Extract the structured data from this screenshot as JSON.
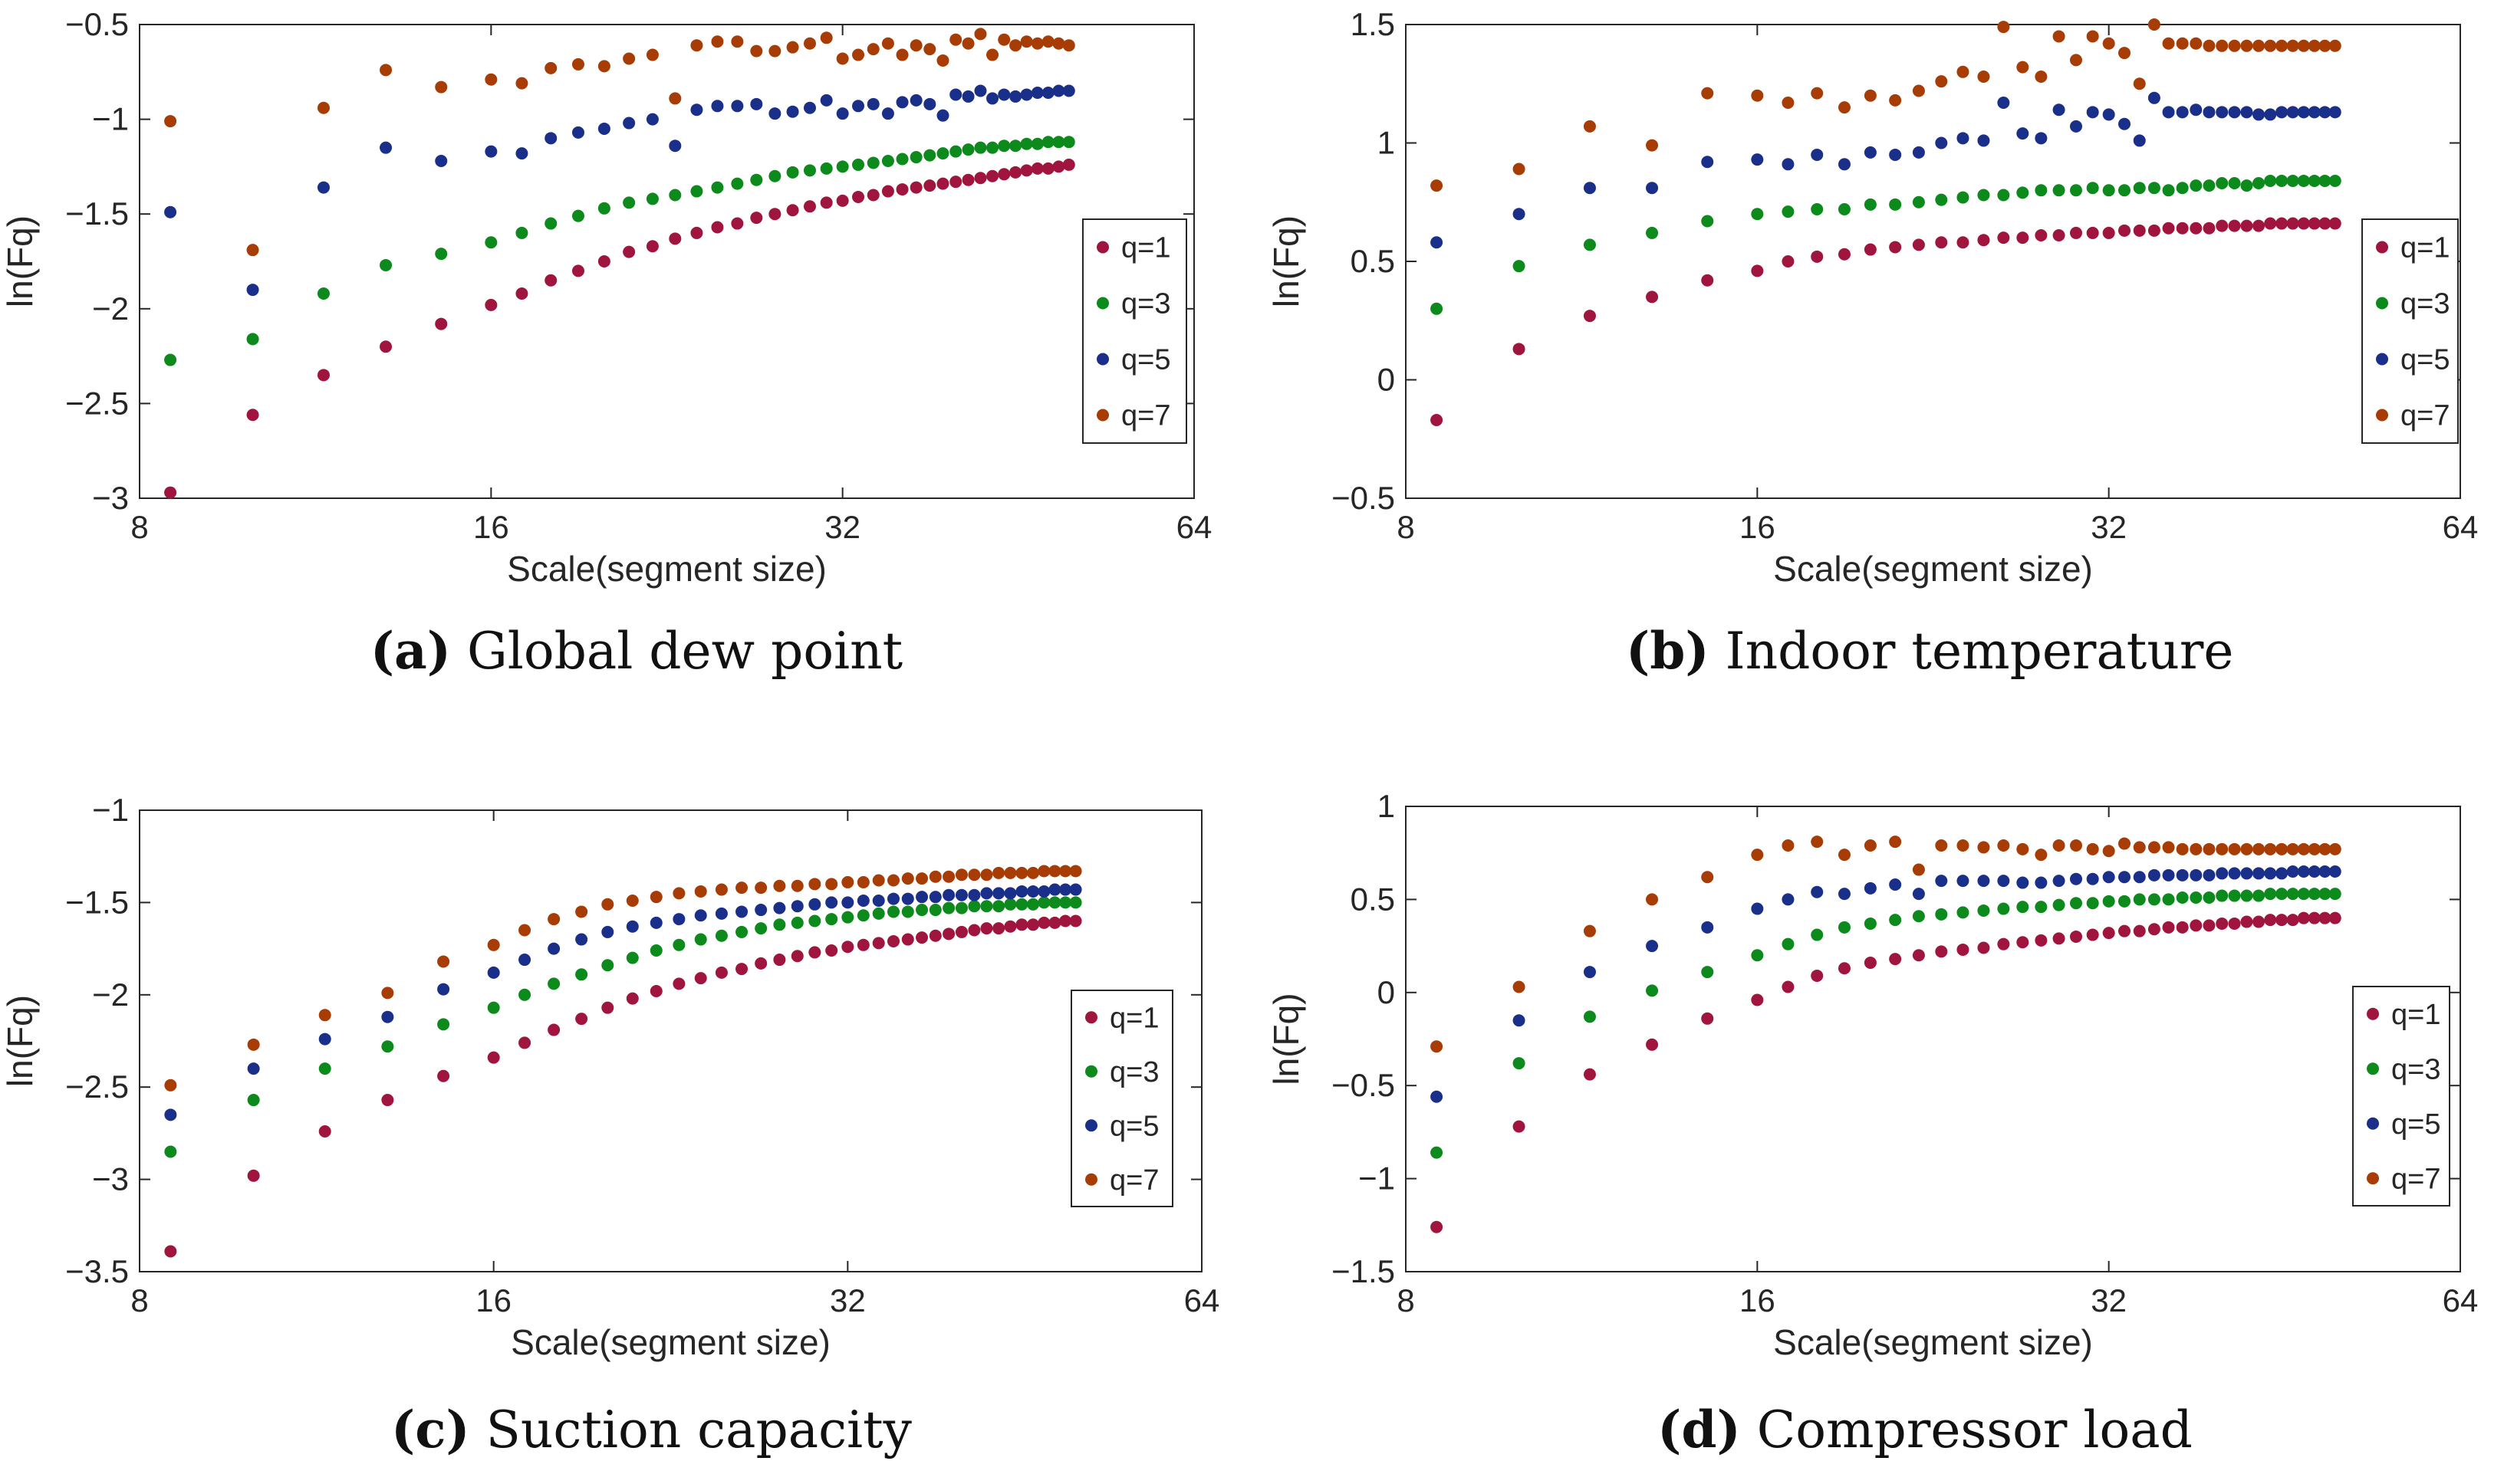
{
  "colors": {
    "q1": "#a0153e",
    "q3": "#0c8a1c",
    "q5": "#1a2f8a",
    "q7": "#a83c05",
    "axis": "#262626",
    "frame": "#262626"
  },
  "chart_data": [
    {
      "id": "a",
      "type": "scatter",
      "caption_letter": "(a)",
      "caption_text": "Global dew point",
      "xlabel": "Scale(segment size)",
      "ylabel": "ln(Fq)",
      "xscale": "log2",
      "xlim": [
        8,
        64
      ],
      "ylim": [
        -3,
        -0.5
      ],
      "xticks": [
        8,
        16,
        32,
        64
      ],
      "xticklabels": [
        "8",
        "16",
        "32",
        "64"
      ],
      "yticks": [
        -3,
        -2.5,
        -2,
        -1.5,
        -1,
        -0.5
      ],
      "yticklabels": [
        "−3",
        "−2.5",
        "−2",
        "−1.5",
        "−1",
        "−0.5"
      ],
      "legend_position": "right",
      "x": [
        8.5,
        10,
        11.5,
        13,
        14.5,
        16,
        17,
        18,
        19,
        20,
        21,
        22,
        23,
        24,
        25,
        26,
        27,
        28,
        29,
        30,
        31,
        32,
        33,
        34,
        35,
        36,
        37,
        38,
        39,
        40,
        41,
        42,
        43,
        44,
        45,
        46,
        47,
        48,
        49,
        50
      ],
      "series": [
        {
          "name": "q=1",
          "values": [
            -2.97,
            -2.56,
            -2.35,
            -2.2,
            -2.08,
            -1.98,
            -1.92,
            -1.85,
            -1.8,
            -1.75,
            -1.7,
            -1.67,
            -1.63,
            -1.6,
            -1.57,
            -1.55,
            -1.52,
            -1.5,
            -1.48,
            -1.46,
            -1.44,
            -1.43,
            -1.41,
            -1.4,
            -1.38,
            -1.37,
            -1.36,
            -1.35,
            -1.34,
            -1.33,
            -1.32,
            -1.31,
            -1.3,
            -1.29,
            -1.28,
            -1.27,
            -1.26,
            -1.26,
            -1.25,
            -1.24
          ]
        },
        {
          "name": "q=3",
          "values": [
            -2.27,
            -2.16,
            -1.92,
            -1.77,
            -1.71,
            -1.65,
            -1.6,
            -1.55,
            -1.51,
            -1.47,
            -1.44,
            -1.42,
            -1.4,
            -1.38,
            -1.36,
            -1.34,
            -1.32,
            -1.3,
            -1.28,
            -1.27,
            -1.26,
            -1.25,
            -1.24,
            -1.23,
            -1.22,
            -1.21,
            -1.2,
            -1.19,
            -1.18,
            -1.17,
            -1.16,
            -1.15,
            -1.15,
            -1.14,
            -1.14,
            -1.13,
            -1.13,
            -1.12,
            -1.12,
            -1.12
          ]
        },
        {
          "name": "q=5",
          "values": [
            -1.49,
            -1.9,
            -1.36,
            -1.15,
            -1.22,
            -1.17,
            -1.18,
            -1.1,
            -1.07,
            -1.05,
            -1.02,
            -1.0,
            -1.14,
            -0.95,
            -0.93,
            -0.93,
            -0.92,
            -0.97,
            -0.96,
            -0.94,
            -0.9,
            -0.97,
            -0.93,
            -0.92,
            -0.97,
            -0.91,
            -0.9,
            -0.92,
            -0.98,
            -0.87,
            -0.88,
            -0.85,
            -0.89,
            -0.87,
            -0.88,
            -0.87,
            -0.86,
            -0.86,
            -0.85,
            -0.85
          ]
        },
        {
          "name": "q=7",
          "values": [
            -1.01,
            -1.69,
            -0.94,
            -0.74,
            -0.83,
            -0.79,
            -0.81,
            -0.73,
            -0.71,
            -0.72,
            -0.68,
            -0.66,
            -0.89,
            -0.61,
            -0.59,
            -0.59,
            -0.64,
            -0.64,
            -0.62,
            -0.6,
            -0.57,
            -0.68,
            -0.66,
            -0.63,
            -0.6,
            -0.66,
            -0.61,
            -0.63,
            -0.69,
            -0.58,
            -0.6,
            -0.55,
            -0.66,
            -0.58,
            -0.61,
            -0.59,
            -0.6,
            -0.59,
            -0.6,
            -0.61
          ]
        }
      ]
    },
    {
      "id": "b",
      "type": "scatter",
      "caption_letter": "(b)",
      "caption_text": "Indoor temperature",
      "xlabel": "Scale(segment size)",
      "ylabel": "ln(Fq)",
      "xscale": "log2",
      "xlim": [
        8,
        64
      ],
      "ylim": [
        -0.5,
        1.5
      ],
      "xticks": [
        8,
        16,
        32,
        64
      ],
      "xticklabels": [
        "8",
        "16",
        "32",
        "64"
      ],
      "yticks": [
        -0.5,
        0,
        0.5,
        1,
        1.5
      ],
      "yticklabels": [
        "−0.5",
        "0",
        "0.5",
        "1",
        "1.5"
      ],
      "legend_position": "right",
      "x": [
        8.5,
        10,
        11.5,
        13,
        14.5,
        16,
        17,
        18,
        19,
        20,
        21,
        22,
        23,
        24,
        25,
        26,
        27,
        28,
        29,
        30,
        31,
        32,
        33,
        34,
        35,
        36,
        37,
        38,
        39,
        40,
        41,
        42,
        43,
        44,
        45,
        46,
        47,
        48,
        49,
        50
      ],
      "series": [
        {
          "name": "q=1",
          "values": [
            -0.17,
            0.13,
            0.27,
            0.35,
            0.42,
            0.46,
            0.5,
            0.52,
            0.53,
            0.55,
            0.56,
            0.57,
            0.58,
            0.58,
            0.59,
            0.6,
            0.6,
            0.61,
            0.61,
            0.62,
            0.62,
            0.62,
            0.63,
            0.63,
            0.63,
            0.64,
            0.64,
            0.64,
            0.64,
            0.65,
            0.65,
            0.65,
            0.65,
            0.66,
            0.66,
            0.66,
            0.66,
            0.66,
            0.66,
            0.66
          ]
        },
        {
          "name": "q=3",
          "values": [
            0.3,
            0.48,
            0.57,
            0.62,
            0.67,
            0.7,
            0.71,
            0.72,
            0.72,
            0.74,
            0.74,
            0.75,
            0.76,
            0.77,
            0.78,
            0.78,
            0.79,
            0.8,
            0.8,
            0.8,
            0.81,
            0.8,
            0.8,
            0.81,
            0.81,
            0.8,
            0.81,
            0.82,
            0.82,
            0.83,
            0.83,
            0.82,
            0.83,
            0.84,
            0.84,
            0.84,
            0.84,
            0.84,
            0.84,
            0.84
          ]
        },
        {
          "name": "q=5",
          "values": [
            0.58,
            0.7,
            0.81,
            0.81,
            0.92,
            0.93,
            0.91,
            0.95,
            0.91,
            0.96,
            0.95,
            0.96,
            1.0,
            1.02,
            1.01,
            1.17,
            1.04,
            1.02,
            1.14,
            1.07,
            1.13,
            1.12,
            1.08,
            1.01,
            1.19,
            1.13,
            1.13,
            1.14,
            1.13,
            1.13,
            1.13,
            1.13,
            1.12,
            1.12,
            1.13,
            1.13,
            1.13,
            1.13,
            1.13,
            1.13
          ]
        },
        {
          "name": "q=7",
          "values": [
            0.82,
            0.89,
            1.07,
            0.99,
            1.21,
            1.2,
            1.17,
            1.21,
            1.15,
            1.2,
            1.18,
            1.22,
            1.26,
            1.3,
            1.28,
            1.49,
            1.32,
            1.28,
            1.45,
            1.35,
            1.45,
            1.42,
            1.38,
            1.25,
            1.5,
            1.42,
            1.42,
            1.42,
            1.41,
            1.41,
            1.41,
            1.41,
            1.41,
            1.41,
            1.41,
            1.41,
            1.41,
            1.41,
            1.41,
            1.41
          ]
        }
      ]
    },
    {
      "id": "c",
      "type": "scatter",
      "caption_letter": "(c)",
      "caption_text": "Suction capacity",
      "xlabel": "Scale(segment size)",
      "ylabel": "ln(Fq)",
      "xscale": "log2",
      "xlim": [
        8,
        64
      ],
      "ylim": [
        -3.5,
        -1
      ],
      "xticks": [
        8,
        16,
        32,
        64
      ],
      "xticklabels": [
        "8",
        "16",
        "32",
        "64"
      ],
      "yticks": [
        -3.5,
        -3,
        -2.5,
        -2,
        -1.5,
        -1
      ],
      "yticklabels": [
        "−3.5",
        "−3",
        "−2.5",
        "−2",
        "−1.5",
        "−1"
      ],
      "legend_position": "right",
      "x": [
        8.5,
        10,
        11.5,
        13,
        14.5,
        16,
        17,
        18,
        19,
        20,
        21,
        22,
        23,
        24,
        25,
        26,
        27,
        28,
        29,
        30,
        31,
        32,
        33,
        34,
        35,
        36,
        37,
        38,
        39,
        40,
        41,
        42,
        43,
        44,
        45,
        46,
        47,
        48,
        49,
        50
      ],
      "series": [
        {
          "name": "q=1",
          "values": [
            -3.39,
            -2.98,
            -2.74,
            -2.57,
            -2.44,
            -2.34,
            -2.26,
            -2.19,
            -2.13,
            -2.07,
            -2.02,
            -1.98,
            -1.94,
            -1.91,
            -1.88,
            -1.86,
            -1.83,
            -1.81,
            -1.79,
            -1.77,
            -1.76,
            -1.74,
            -1.73,
            -1.72,
            -1.71,
            -1.7,
            -1.69,
            -1.68,
            -1.67,
            -1.66,
            -1.65,
            -1.64,
            -1.64,
            -1.63,
            -1.62,
            -1.62,
            -1.61,
            -1.61,
            -1.6,
            -1.6
          ]
        },
        {
          "name": "q=3",
          "values": [
            -2.85,
            -2.57,
            -2.4,
            -2.28,
            -2.16,
            -2.07,
            -2.0,
            -1.94,
            -1.89,
            -1.84,
            -1.8,
            -1.76,
            -1.73,
            -1.7,
            -1.68,
            -1.66,
            -1.64,
            -1.62,
            -1.61,
            -1.6,
            -1.59,
            -1.58,
            -1.57,
            -1.56,
            -1.55,
            -1.55,
            -1.54,
            -1.54,
            -1.53,
            -1.53,
            -1.52,
            -1.52,
            -1.52,
            -1.51,
            -1.51,
            -1.51,
            -1.5,
            -1.5,
            -1.5,
            -1.5
          ]
        },
        {
          "name": "q=5",
          "values": [
            -2.65,
            -2.4,
            -2.24,
            -2.12,
            -1.97,
            -1.88,
            -1.81,
            -1.75,
            -1.7,
            -1.66,
            -1.63,
            -1.61,
            -1.59,
            -1.57,
            -1.56,
            -1.55,
            -1.54,
            -1.53,
            -1.52,
            -1.51,
            -1.5,
            -1.5,
            -1.49,
            -1.49,
            -1.48,
            -1.48,
            -1.47,
            -1.47,
            -1.46,
            -1.46,
            -1.46,
            -1.45,
            -1.45,
            -1.45,
            -1.44,
            -1.44,
            -1.44,
            -1.43,
            -1.43,
            -1.43
          ]
        },
        {
          "name": "q=7",
          "values": [
            -2.49,
            -2.27,
            -2.11,
            -1.99,
            -1.82,
            -1.73,
            -1.65,
            -1.59,
            -1.55,
            -1.51,
            -1.49,
            -1.47,
            -1.45,
            -1.44,
            -1.43,
            -1.42,
            -1.42,
            -1.41,
            -1.41,
            -1.4,
            -1.4,
            -1.39,
            -1.39,
            -1.38,
            -1.38,
            -1.37,
            -1.37,
            -1.36,
            -1.36,
            -1.35,
            -1.35,
            -1.35,
            -1.34,
            -1.34,
            -1.34,
            -1.34,
            -1.33,
            -1.33,
            -1.33,
            -1.33
          ]
        }
      ]
    },
    {
      "id": "d",
      "type": "scatter",
      "caption_letter": "(d)",
      "caption_text": "Compressor load",
      "xlabel": "Scale(segment size)",
      "ylabel": "ln(Fq)",
      "xscale": "log2",
      "xlim": [
        8,
        64
      ],
      "ylim": [
        -1.5,
        1
      ],
      "xticks": [
        8,
        16,
        32,
        64
      ],
      "xticklabels": [
        "8",
        "16",
        "32",
        "64"
      ],
      "yticks": [
        -1.5,
        -1,
        -0.5,
        0,
        0.5,
        1
      ],
      "yticklabels": [
        "−1.5",
        "−1",
        "−0.5",
        "0",
        "0.5",
        "1"
      ],
      "legend_position": "right",
      "x": [
        8.5,
        10,
        11.5,
        13,
        14.5,
        16,
        17,
        18,
        19,
        20,
        21,
        22,
        23,
        24,
        25,
        26,
        27,
        28,
        29,
        30,
        31,
        32,
        33,
        34,
        35,
        36,
        37,
        38,
        39,
        40,
        41,
        42,
        43,
        44,
        45,
        46,
        47,
        48,
        49,
        50
      ],
      "series": [
        {
          "name": "q=1",
          "values": [
            -1.26,
            -0.72,
            -0.44,
            -0.28,
            -0.14,
            -0.04,
            0.03,
            0.09,
            0.13,
            0.16,
            0.18,
            0.2,
            0.22,
            0.23,
            0.24,
            0.26,
            0.27,
            0.28,
            0.29,
            0.3,
            0.31,
            0.32,
            0.33,
            0.33,
            0.34,
            0.35,
            0.35,
            0.36,
            0.36,
            0.37,
            0.37,
            0.38,
            0.38,
            0.39,
            0.39,
            0.39,
            0.4,
            0.4,
            0.4,
            0.4
          ]
        },
        {
          "name": "q=3",
          "values": [
            -0.86,
            -0.38,
            -0.13,
            0.01,
            0.11,
            0.2,
            0.26,
            0.31,
            0.35,
            0.37,
            0.39,
            0.41,
            0.42,
            0.43,
            0.44,
            0.45,
            0.46,
            0.46,
            0.47,
            0.48,
            0.48,
            0.49,
            0.49,
            0.5,
            0.5,
            0.5,
            0.51,
            0.51,
            0.51,
            0.52,
            0.52,
            0.52,
            0.52,
            0.53,
            0.53,
            0.53,
            0.53,
            0.53,
            0.53,
            0.53
          ]
        },
        {
          "name": "q=5",
          "values": [
            -0.56,
            -0.15,
            0.11,
            0.25,
            0.35,
            0.45,
            0.5,
            0.54,
            0.53,
            0.56,
            0.58,
            0.53,
            0.6,
            0.6,
            0.6,
            0.6,
            0.59,
            0.59,
            0.6,
            0.61,
            0.61,
            0.62,
            0.62,
            0.62,
            0.63,
            0.63,
            0.63,
            0.63,
            0.63,
            0.64,
            0.64,
            0.64,
            0.64,
            0.64,
            0.64,
            0.65,
            0.65,
            0.65,
            0.65,
            0.65
          ]
        },
        {
          "name": "q=7",
          "values": [
            -0.29,
            0.03,
            0.33,
            0.5,
            0.62,
            0.74,
            0.79,
            0.81,
            0.74,
            0.79,
            0.81,
            0.66,
            0.79,
            0.79,
            0.78,
            0.79,
            0.77,
            0.74,
            0.79,
            0.79,
            0.77,
            0.76,
            0.8,
            0.78,
            0.78,
            0.78,
            0.77,
            0.77,
            0.77,
            0.77,
            0.77,
            0.77,
            0.77,
            0.77,
            0.77,
            0.77,
            0.77,
            0.77,
            0.77,
            0.77
          ]
        }
      ]
    }
  ]
}
